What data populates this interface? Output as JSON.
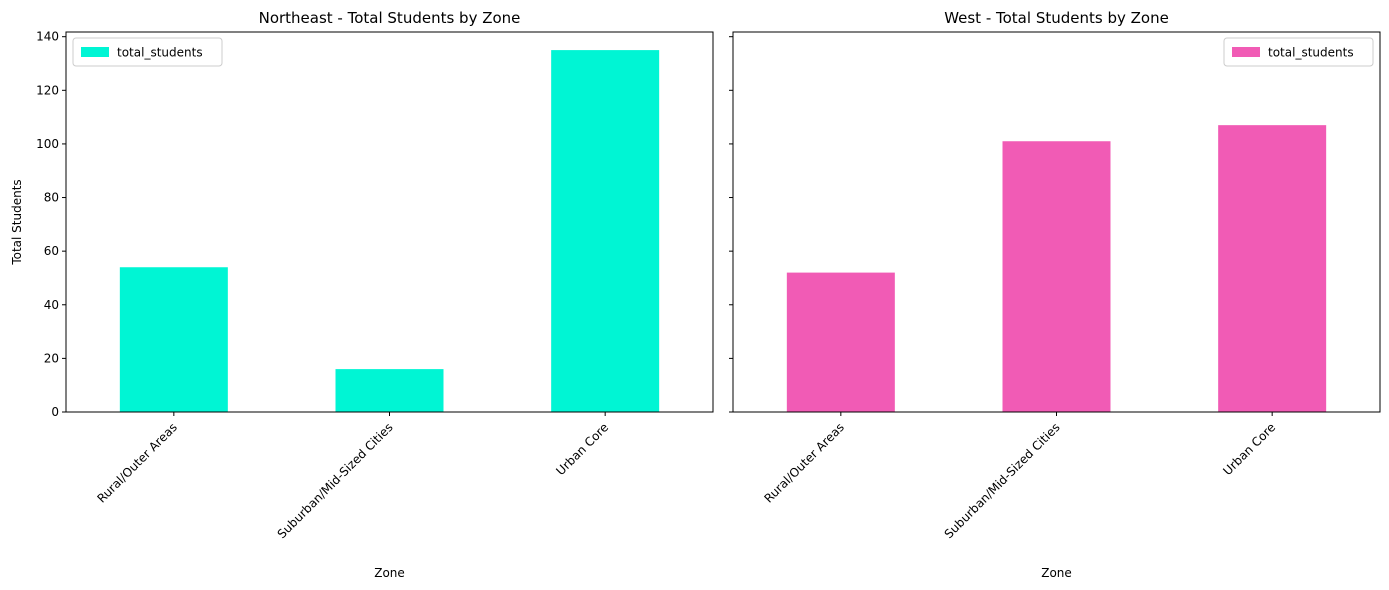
{
  "chart_data": [
    {
      "type": "bar",
      "title": "Northeast - Total Students by Zone",
      "xlabel": "Zone",
      "ylabel": "Total Students",
      "categories": [
        "Rural/Outer Areas",
        "Suburban/Mid-Sized Cities",
        "Urban Core"
      ],
      "series": [
        {
          "name": "total_students",
          "values": [
            54,
            16,
            135
          ],
          "color": "#00F5D4"
        }
      ],
      "ylim": [
        0,
        141.75
      ],
      "yticks": [
        0,
        20,
        40,
        60,
        80,
        100,
        120,
        140
      ],
      "show_ytick_labels": true,
      "legend_position": "upper left",
      "grid": false
    },
    {
      "type": "bar",
      "title": "West - Total Students by Zone",
      "xlabel": "Zone",
      "ylabel": "",
      "categories": [
        "Rural/Outer Areas",
        "Suburban/Mid-Sized Cities",
        "Urban Core"
      ],
      "series": [
        {
          "name": "total_students",
          "values": [
            52,
            101,
            107
          ],
          "color": "#F15BB5"
        }
      ],
      "ylim": [
        0,
        141.75
      ],
      "yticks": [
        0,
        20,
        40,
        60,
        80,
        100,
        120,
        140
      ],
      "show_ytick_labels": false,
      "legend_position": "upper right",
      "grid": false
    }
  ]
}
